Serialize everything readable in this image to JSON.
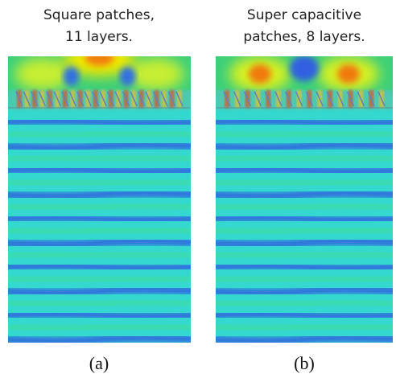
{
  "panels": [
    {
      "title_lines": [
        "Square patches,",
        "11 layers."
      ],
      "caption": "(a)"
    },
    {
      "title_lines": [
        "Super capacitive",
        "patches, 8 layers."
      ],
      "caption": "(b)"
    }
  ]
}
